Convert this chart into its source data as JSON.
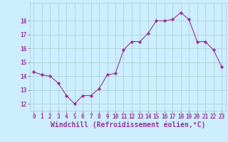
{
  "x": [
    0,
    1,
    2,
    3,
    4,
    5,
    6,
    7,
    8,
    9,
    10,
    11,
    12,
    13,
    14,
    15,
    16,
    17,
    18,
    19,
    20,
    21,
    22,
    23
  ],
  "y": [
    14.3,
    14.1,
    14.0,
    13.5,
    12.6,
    12.0,
    12.6,
    12.6,
    13.1,
    14.1,
    14.2,
    15.9,
    16.5,
    16.5,
    17.1,
    18.0,
    18.0,
    18.1,
    18.6,
    18.1,
    16.5,
    16.5,
    15.9,
    14.7
  ],
  "line_color": "#993399",
  "marker": "D",
  "marker_size": 2.2,
  "bg_color": "#cceeff",
  "grid_color": "#aacccc",
  "ylim": [
    11.5,
    19.3
  ],
  "xlim": [
    -0.5,
    23.5
  ],
  "yticks": [
    12,
    13,
    14,
    15,
    16,
    17,
    18
  ],
  "xticks": [
    0,
    1,
    2,
    3,
    4,
    5,
    6,
    7,
    8,
    9,
    10,
    11,
    12,
    13,
    14,
    15,
    16,
    17,
    18,
    19,
    20,
    21,
    22,
    23
  ],
  "tick_color": "#993399",
  "label_color": "#993399",
  "tick_fontsize": 5.5,
  "xlabel": "Windchill (Refroidissement éolien,°C)",
  "xlabel_fontsize": 7.0
}
